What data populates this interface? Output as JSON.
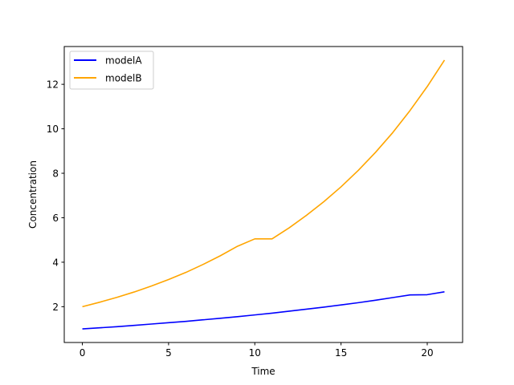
{
  "chart_data": {
    "type": "line",
    "title": "",
    "xlabel": "Time",
    "ylabel": "Concentration",
    "xlim": [
      -1.05,
      22.05
    ],
    "ylim": [
      0.39,
      13.7
    ],
    "xticks": [
      0,
      5,
      10,
      15,
      20
    ],
    "yticks": [
      2,
      4,
      6,
      8,
      10,
      12
    ],
    "grid": false,
    "legend_position": "top-left",
    "x": [
      0,
      1,
      2,
      3,
      4,
      5,
      6,
      7,
      8,
      9,
      10,
      11,
      12,
      13,
      14,
      15,
      16,
      17,
      18,
      19,
      20,
      21
    ],
    "series": [
      {
        "name": "modelA",
        "color": "#0000ff",
        "values": [
          1.0,
          1.05,
          1.1,
          1.16,
          1.22,
          1.28,
          1.34,
          1.41,
          1.48,
          1.55,
          1.63,
          1.71,
          1.8,
          1.89,
          1.98,
          2.08,
          2.18,
          2.29,
          2.41,
          2.53,
          2.54,
          2.67
        ]
      },
      {
        "name": "modelB",
        "color": "#ffa500",
        "values": [
          2.0,
          2.2,
          2.42,
          2.66,
          2.93,
          3.22,
          3.54,
          3.9,
          4.29,
          4.72,
          5.05,
          5.05,
          5.55,
          6.11,
          6.72,
          7.39,
          8.13,
          8.94,
          9.83,
          10.82,
          11.9,
          13.09
        ]
      }
    ]
  }
}
